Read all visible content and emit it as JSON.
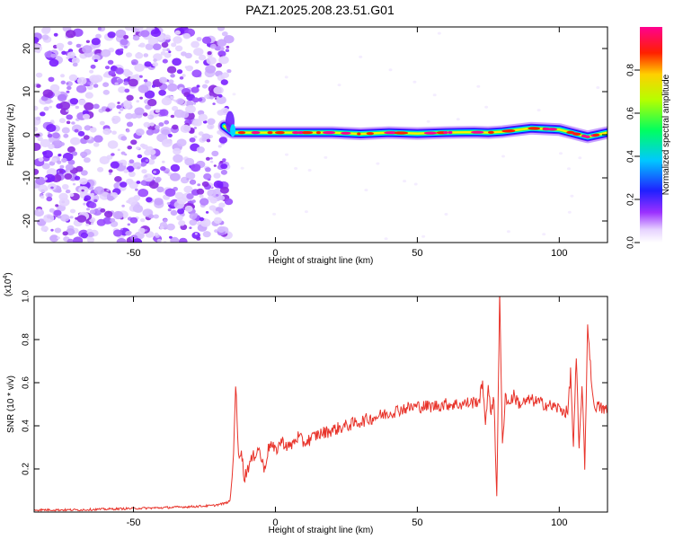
{
  "title": "PAZ1.2025.208.23.51.G01",
  "chart_data": [
    {
      "type": "heatmap",
      "xlabel": "Height of straight line (km)",
      "ylabel": "Frequency (Hz)",
      "xlim": [
        -85,
        117
      ],
      "ylim": [
        -25,
        25
      ],
      "xticks": [
        -50,
        0,
        50,
        100
      ],
      "yticks": [
        -20,
        -10,
        0,
        10,
        20
      ],
      "colorbar_label": "Normalized spectral amplitude",
      "colorbar_range": [
        0,
        1
      ],
      "colorbar_ticks": [
        "0.0",
        "0.2",
        "0.4",
        "0.6",
        "0.8"
      ],
      "colormap": [
        "#f0f0ff",
        "#c9a9ff",
        "#8a2be2",
        "#0000ff",
        "#00ffff",
        "#00ff00",
        "#ffff00",
        "#ff0000",
        "#ff0080"
      ],
      "ridge": {
        "description_free": true,
        "x": [
          -18,
          -15,
          -10,
          0,
          10,
          20,
          30,
          40,
          50,
          60,
          70,
          75,
          80,
          90,
          100,
          110,
          117
        ],
        "y": [
          2,
          0.5,
          0.5,
          0.5,
          0.5,
          0.5,
          0.2,
          0.5,
          0.3,
          0.5,
          0.6,
          0.5,
          0.7,
          1.5,
          1.2,
          -0.5,
          0.5
        ]
      },
      "noise_region_xlim": [
        -85,
        -18
      ]
    },
    {
      "type": "line",
      "xlabel": "Height of straight line (km)",
      "ylabel": "SNR (10 * v/v)",
      "yscale_note": "(x10^4)",
      "xlim": [
        -85,
        117
      ],
      "ylim": [
        0,
        1.0
      ],
      "xticks": [
        -50,
        0,
        50,
        100
      ],
      "yticks": [
        0.2,
        0.4,
        0.6,
        0.8,
        1.0
      ],
      "line_color": "#e8332a",
      "series": [
        {
          "x": [
            -85,
            -70,
            -55,
            -40,
            -30,
            -22,
            -18,
            -16,
            -15,
            -14,
            -13,
            -12,
            -11,
            -10,
            -8,
            -6,
            -4,
            -2,
            0,
            2,
            5,
            8,
            10,
            15,
            20,
            25,
            30,
            35,
            40,
            45,
            50,
            55,
            60,
            65,
            70,
            72,
            73,
            74,
            75,
            76,
            77,
            78,
            79,
            80,
            81,
            82,
            84,
            86,
            90,
            95,
            100,
            103,
            104,
            105,
            106,
            107,
            108,
            109,
            110,
            112,
            115,
            117
          ],
          "values": [
            0.01,
            0.01,
            0.015,
            0.02,
            0.025,
            0.03,
            0.04,
            0.05,
            0.2,
            0.6,
            0.25,
            0.3,
            0.15,
            0.2,
            0.25,
            0.3,
            0.2,
            0.32,
            0.28,
            0.33,
            0.3,
            0.35,
            0.32,
            0.36,
            0.38,
            0.4,
            0.42,
            0.44,
            0.46,
            0.48,
            0.49,
            0.49,
            0.5,
            0.5,
            0.51,
            0.52,
            0.62,
            0.38,
            0.6,
            0.46,
            0.52,
            0.08,
            1.0,
            0.3,
            0.55,
            0.5,
            0.54,
            0.5,
            0.52,
            0.5,
            0.48,
            0.46,
            0.65,
            0.3,
            0.72,
            0.28,
            0.6,
            0.2,
            0.87,
            0.5,
            0.48,
            0.47
          ]
        }
      ]
    }
  ]
}
